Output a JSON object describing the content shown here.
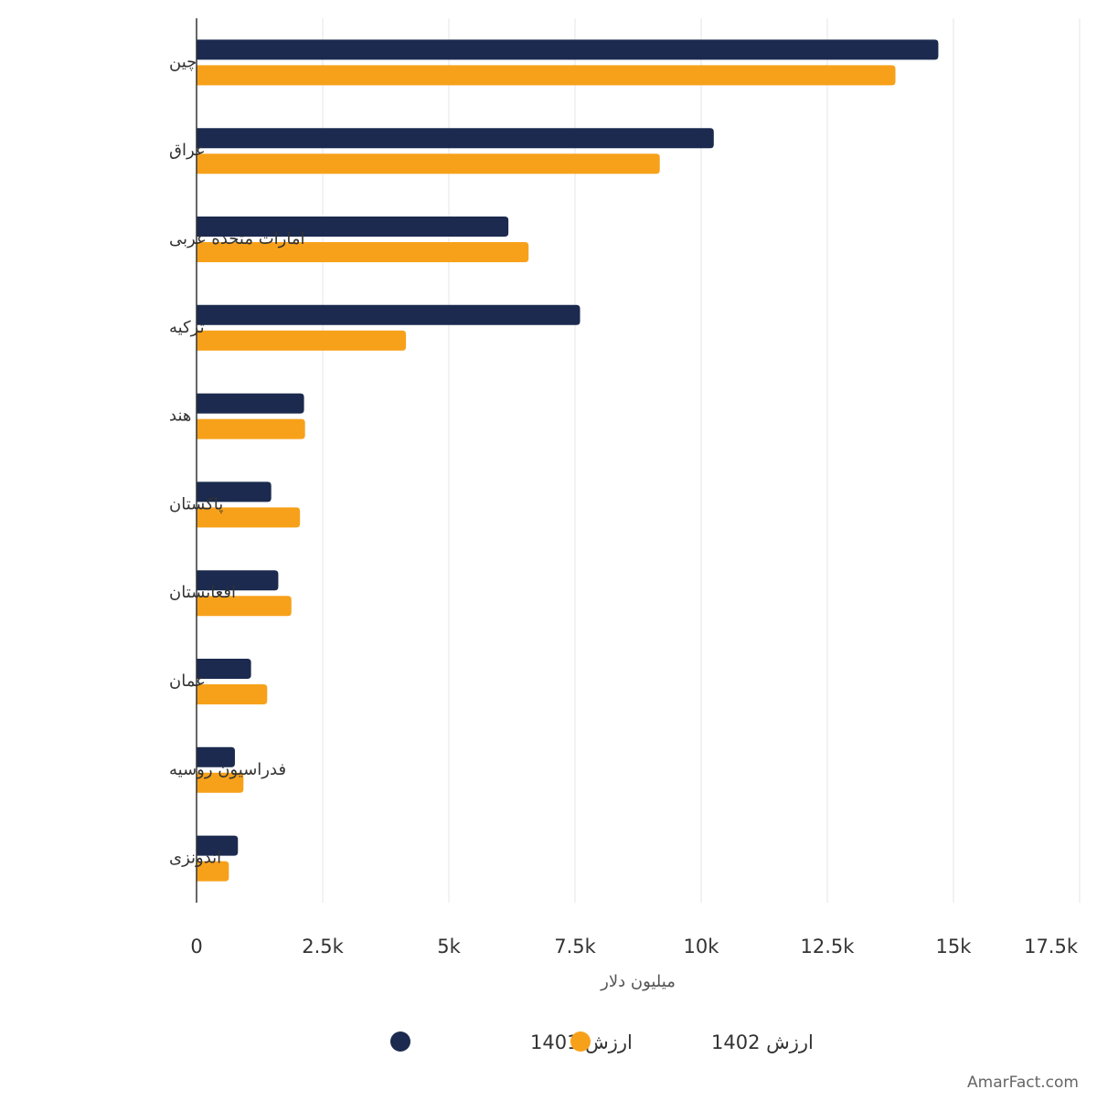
{
  "chart_data": {
    "type": "bar",
    "orientation": "horizontal",
    "categories": [
      "چین",
      "عراق",
      "امارات متحده عربی",
      "ترکیه",
      "هند",
      "پاکستان",
      "افغانستان",
      "عمان",
      "فدراسیون روسیه",
      "اندونزی"
    ],
    "series": [
      {
        "name": "ارزش 1401",
        "color": "#1b2a4e",
        "values": [
          14700,
          10250,
          6180,
          7600,
          2130,
          1480,
          1620,
          1080,
          760,
          820
        ]
      },
      {
        "name": "ارزش 1402",
        "color": "#f7a11a",
        "values": [
          13850,
          9180,
          6580,
          4150,
          2150,
          2050,
          1880,
          1400,
          930,
          640
        ]
      }
    ],
    "xlabel": "میلیون دلار",
    "ylabel": "",
    "xlim": [
      0,
      17500
    ],
    "xticks": [
      0,
      2500,
      5000,
      7500,
      10000,
      12500,
      15000,
      17500
    ],
    "xtick_labels": [
      "0",
      "2.5k",
      "5k",
      "7.5k",
      "10k",
      "12.5k",
      "15k",
      "17.5k"
    ],
    "grid": true,
    "legend_position": "bottom"
  },
  "watermark": "AmarFact.com",
  "colors": {
    "grid": "#e6e6e6",
    "axis": "#333333",
    "text": "#333333",
    "watermark": "#666666"
  }
}
